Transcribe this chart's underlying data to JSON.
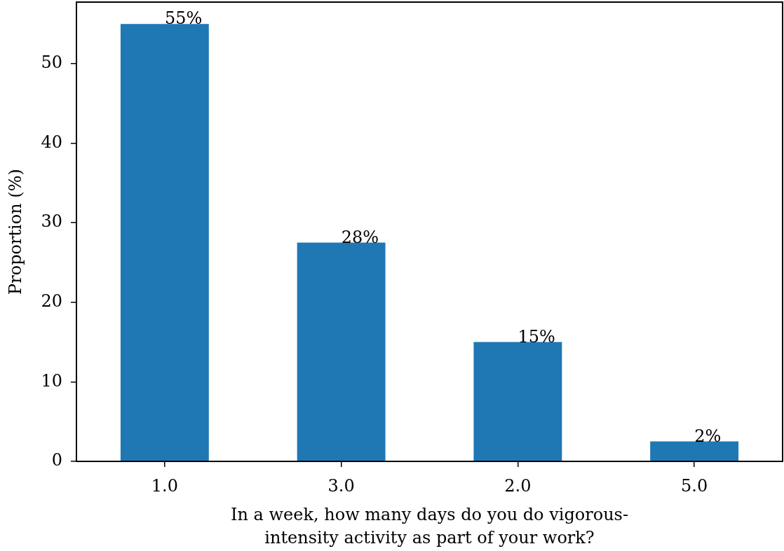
{
  "chart_data": {
    "type": "bar",
    "xlabel": "In a week, how many days do you do vigorous-\nintensity activity as part of your work?",
    "ylabel": "Proportion (%)",
    "categories": [
      "1.0",
      "3.0",
      "2.0",
      "5.0"
    ],
    "values": [
      55,
      27.5,
      15,
      2.5
    ],
    "value_labels": [
      "55%",
      "28%",
      "15%",
      "2%"
    ],
    "color": "#1f77b4",
    "ylim": [
      0,
      57.75
    ],
    "yticks": [
      0,
      10,
      20,
      30,
      40,
      50
    ],
    "legend": false
  }
}
